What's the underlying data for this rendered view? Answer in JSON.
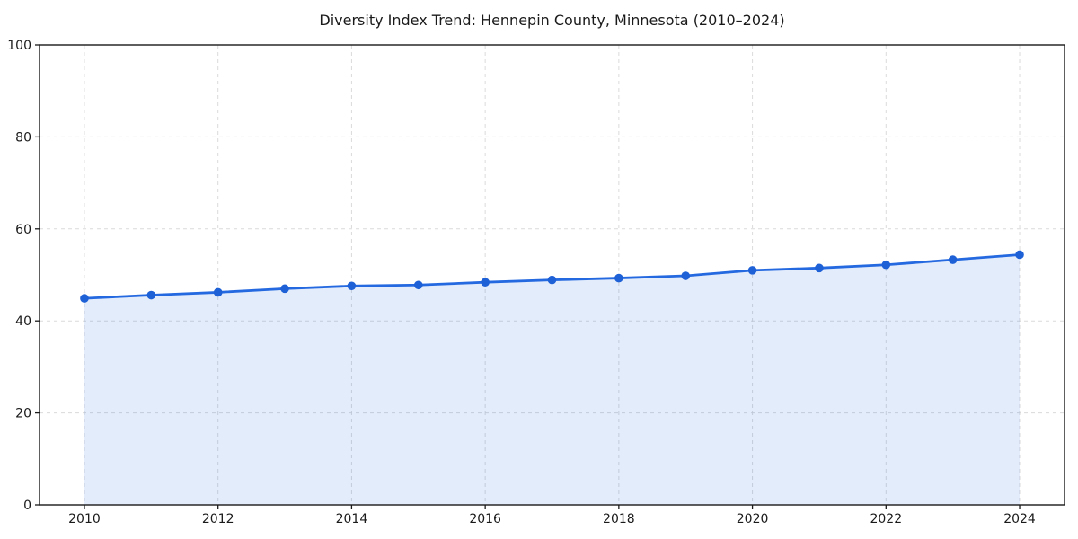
{
  "page": {
    "background": "#ffffff"
  },
  "chart_data": {
    "type": "area",
    "title": "Diversity Index Trend: Hennepin County, Minnesota (2010–2024)",
    "xlabel": "",
    "ylabel": "",
    "x": [
      2010,
      2011,
      2012,
      2013,
      2014,
      2015,
      2016,
      2017,
      2018,
      2019,
      2020,
      2021,
      2022,
      2023,
      2024
    ],
    "series": [
      {
        "name": "Diversity Index",
        "values": [
          44.9,
          45.6,
          46.2,
          47.0,
          47.6,
          47.8,
          48.4,
          48.9,
          49.3,
          49.8,
          51.0,
          51.5,
          52.2,
          53.3,
          54.4
        ]
      }
    ],
    "ylim": [
      0,
      100
    ],
    "yticks": [
      0,
      20,
      40,
      60,
      80,
      100
    ],
    "xticks": [
      2010,
      2012,
      2014,
      2016,
      2018,
      2020,
      2022,
      2024
    ],
    "grid": {
      "visible": true,
      "style": "dashed"
    },
    "legend": {
      "visible": false
    },
    "colors": {
      "line": "#2569e0",
      "marker": "#1e60d6",
      "fill": "rgba(37, 105, 224, 0.13)",
      "grid": "#d4d4d4",
      "spine": "#1a1a1a",
      "tick_label": "#1a1a1a",
      "title": "#1a1a1a",
      "background": "#ffffff"
    }
  }
}
